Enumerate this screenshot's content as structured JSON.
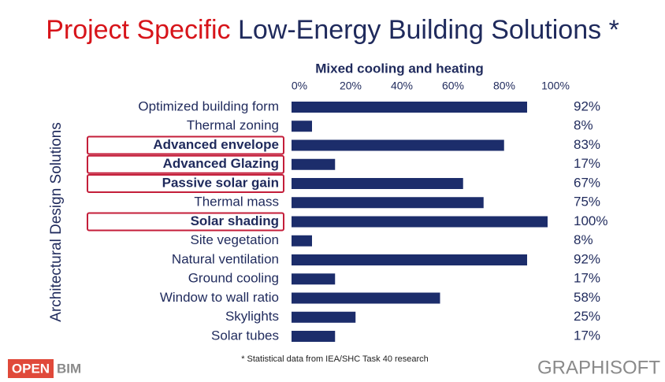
{
  "chart_data": {
    "type": "barh",
    "title_accent": "Project Specific",
    "title": "Low-Energy Building Solutions *",
    "subtitle": "Mixed cooling and heating",
    "ylabel": "Architectural Design Solutions",
    "categories": [
      "Optimized building form",
      "Thermal zoning",
      "Advanced envelope",
      "Advanced Glazing",
      "Passive solar gain",
      "Thermal mass",
      "Solar shading",
      "Site vegetation",
      "Natural ventilation",
      "Ground cooling",
      "Window to wall ratio",
      "Skylights",
      "Solar tubes"
    ],
    "values": [
      92,
      8,
      83,
      17,
      67,
      75,
      100,
      8,
      92,
      17,
      58,
      25,
      17
    ],
    "value_labels": [
      "92%",
      "8%",
      "83%",
      "17%",
      "67%",
      "75%",
      "100%",
      "8%",
      "92%",
      "17%",
      "58%",
      "25%",
      "17%"
    ],
    "highlighted": [
      2,
      3,
      4,
      6
    ],
    "color": "#1c2d6b",
    "highlight_color": "#c41e3a",
    "xlim": [
      0,
      100
    ],
    "xticks": [
      {
        "value": 0,
        "label": "0%"
      },
      {
        "value": 20,
        "label": "20%"
      },
      {
        "value": 40,
        "label": "40%"
      },
      {
        "value": 60,
        "label": "60%"
      },
      {
        "value": 80,
        "label": "80%"
      },
      {
        "value": 100,
        "label": "100%"
      }
    ],
    "grid": false,
    "footnote": "* Statistical data from IEA/SHC Task 40 research"
  },
  "logos": {
    "open": "OPEN",
    "bim": "BIM",
    "graphisoft": "GRAPHISOFT"
  }
}
